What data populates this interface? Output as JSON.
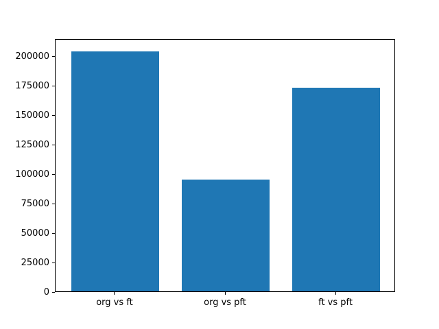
{
  "figure": {
    "background": "#ffffff",
    "axis_color": "#000000",
    "bar_color": "#1f77b4"
  },
  "chart_data": {
    "type": "bar",
    "categories": [
      "org vs ft",
      "org vs pft",
      "ft vs pft"
    ],
    "values": [
      204000,
      95000,
      173000
    ],
    "title": "",
    "xlabel": "",
    "ylabel": "",
    "ylim": [
      0,
      215000
    ],
    "xlim": [
      -0.54,
      2.54
    ],
    "yticks": [
      0,
      25000,
      50000,
      75000,
      100000,
      125000,
      150000,
      175000,
      200000
    ],
    "bar_width_fraction": 0.8,
    "grid": false,
    "legend": null
  }
}
